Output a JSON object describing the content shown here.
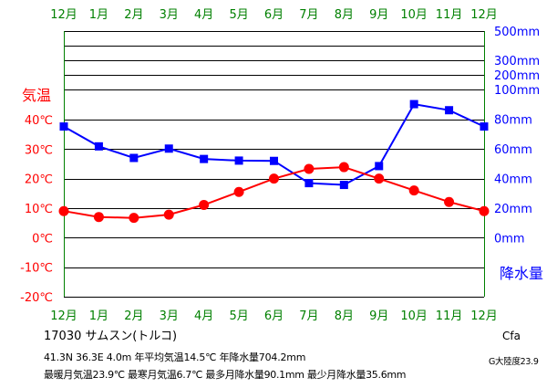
{
  "chart_data": {
    "type": "line",
    "categories": [
      "12月",
      "1月",
      "2月",
      "3月",
      "4月",
      "5月",
      "6月",
      "7月",
      "8月",
      "9月",
      "10月",
      "11月",
      "12月"
    ],
    "series": [
      {
        "name": "気温",
        "unit": "℃",
        "axis": "left",
        "color": "#ff0000",
        "marker": "circle",
        "values": [
          9.0,
          7.0,
          6.7,
          7.8,
          11.1,
          15.5,
          20.0,
          23.3,
          23.9,
          20.0,
          16.0,
          12.1,
          9.0
        ]
      },
      {
        "name": "降水量",
        "unit": "mm",
        "axis": "right",
        "color": "#0000ff",
        "marker": "square",
        "values": [
          75.0,
          61.6,
          53.8,
          60.1,
          53.1,
          52.0,
          51.8,
          36.8,
          35.6,
          48.3,
          90.1,
          86.0,
          75.0
        ]
      }
    ],
    "left_axis": {
      "label": "気温",
      "ticks": [
        "40℃",
        "30℃",
        "20℃",
        "10℃",
        "0℃",
        "-10℃",
        "-20℃"
      ],
      "values": [
        40,
        30,
        20,
        10,
        0,
        -10,
        -20
      ],
      "ylim": [
        -20,
        40
      ]
    },
    "right_axis": {
      "label": "降水量",
      "ticks": [
        "500mm",
        "300mm",
        "200mm",
        "100mm",
        "80mm",
        "60mm",
        "40mm",
        "20mm",
        "0mm"
      ],
      "linear_range": [
        0,
        100
      ],
      "upper_steps": [
        100,
        200,
        300,
        400,
        500
      ]
    },
    "grid": true,
    "colors": {
      "temperature": "#ff0000",
      "precipitation": "#0000ff",
      "month_label": "#008000",
      "left_axis": "#ff0000",
      "right_axis": "#0000ff",
      "grid": "#000000",
      "axis": "#008000"
    }
  },
  "station": {
    "title": "17030 サムスン(トルコ)"
  },
  "stats": {
    "line1": "41.3N 36.3E 4.0m 年平均気温14.5℃ 年降水量704.2mm",
    "line2": "最暖月気温23.9℃ 最寒月気温6.7℃ 最多月降水量90.1mm 最少月降水量35.6mm"
  },
  "classification": {
    "climate": "Cfa",
    "continent": "G大陸度23.9"
  }
}
